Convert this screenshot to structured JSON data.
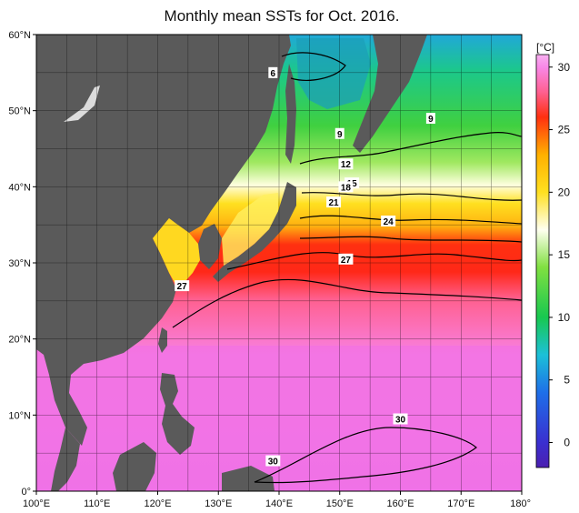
{
  "title": "Monthly mean SSTs for Oct. 2016.",
  "map": {
    "lon_range": [
      100,
      180
    ],
    "lat_range": [
      0,
      60
    ],
    "lat_ticks": [
      {
        "lat": 60,
        "label": "60°N"
      },
      {
        "lat": 50,
        "label": "50°N"
      },
      {
        "lat": 40,
        "label": "40°N"
      },
      {
        "lat": 30,
        "label": "30°N"
      },
      {
        "lat": 20,
        "label": "20°N"
      },
      {
        "lat": 10,
        "label": "10°N"
      },
      {
        "lat": 0,
        "label": "0°"
      }
    ],
    "lon_ticks": [
      {
        "lon": 100,
        "label": "100°E"
      },
      {
        "lon": 110,
        "label": "110°E"
      },
      {
        "lon": 120,
        "label": "120°E"
      },
      {
        "lon": 130,
        "label": "130°E"
      },
      {
        "lon": 140,
        "label": "140°E"
      },
      {
        "lon": 150,
        "label": "150°E"
      },
      {
        "lon": 160,
        "label": "160°E"
      },
      {
        "lon": 170,
        "label": "170°E"
      },
      {
        "lon": 180,
        "label": "180°"
      }
    ],
    "contour_labels": [
      {
        "text": "6",
        "lon": 139,
        "lat": 55
      },
      {
        "text": "9",
        "lon": 165,
        "lat": 49
      },
      {
        "text": "9",
        "lon": 150,
        "lat": 47
      },
      {
        "text": "12",
        "lon": 151,
        "lat": 43
      },
      {
        "text": "15",
        "lon": 152,
        "lat": 40.5
      },
      {
        "text": "18",
        "lon": 151,
        "lat": 40
      },
      {
        "text": "21",
        "lon": 149,
        "lat": 38
      },
      {
        "text": "24",
        "lon": 158,
        "lat": 35.5
      },
      {
        "text": "27",
        "lon": 151,
        "lat": 30.5
      },
      {
        "text": "27",
        "lon": 124,
        "lat": 27
      },
      {
        "text": "30",
        "lon": 160,
        "lat": 9.5
      },
      {
        "text": "30",
        "lon": 139,
        "lat": 4
      }
    ],
    "colors": {
      "land": "#5a5a5a",
      "ice": "#dcdcdc",
      "warm_pool": "#f070e0"
    }
  },
  "colorbar": {
    "unit": "[°C]",
    "ticks": [
      {
        "value": 30,
        "label": "30"
      },
      {
        "value": 25,
        "label": "25"
      },
      {
        "value": 20,
        "label": "20"
      },
      {
        "value": 15,
        "label": "15"
      },
      {
        "value": 10,
        "label": "10"
      },
      {
        "value": 5,
        "label": "5"
      },
      {
        "value": 0,
        "label": "0"
      }
    ],
    "stops": [
      {
        "value": -2,
        "color": "#4b1fb0"
      },
      {
        "value": 0,
        "color": "#3a2fd0"
      },
      {
        "value": 4,
        "color": "#1e6fe8"
      },
      {
        "value": 7,
        "color": "#1cc0d8"
      },
      {
        "value": 10,
        "color": "#18c850"
      },
      {
        "value": 14,
        "color": "#80e040"
      },
      {
        "value": 17,
        "color": "#fffff0"
      },
      {
        "value": 20,
        "color": "#ffe020"
      },
      {
        "value": 23,
        "color": "#ffb000"
      },
      {
        "value": 26,
        "color": "#ff3010"
      },
      {
        "value": 28,
        "color": "#ff6090"
      },
      {
        "value": 30,
        "color": "#f888e8"
      },
      {
        "value": 31,
        "color": "#f8b0f0"
      }
    ]
  }
}
